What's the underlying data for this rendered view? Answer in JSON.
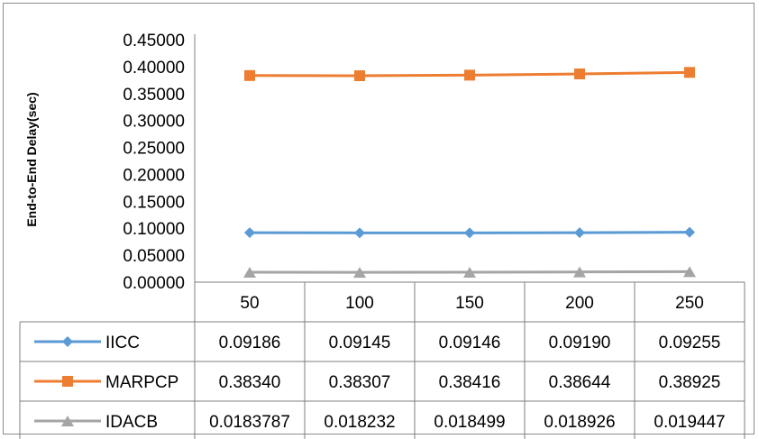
{
  "chart_data": {
    "type": "line",
    "ylabel": "End-to-End Delay(sec)",
    "xlabel": "",
    "ylim": [
      0,
      0.45
    ],
    "yticks": [
      "0.00000",
      "0.05000",
      "0.10000",
      "0.15000",
      "0.20000",
      "0.25000",
      "0.30000",
      "0.35000",
      "0.40000",
      "0.45000"
    ],
    "categories": [
      "50",
      "100",
      "150",
      "200",
      "250"
    ],
    "grid": false,
    "legend": "data-table",
    "series": [
      {
        "name": "IICC",
        "color": "#5b9bd5",
        "marker": "diamond",
        "values": [
          0.09186,
          0.09145,
          0.09146,
          0.0919,
          0.09255
        ],
        "labels": [
          "0.09186",
          "0.09145",
          "0.09146",
          "0.09190",
          "0.09255"
        ]
      },
      {
        "name": "MARPCP",
        "color": "#ed7d31",
        "marker": "square",
        "values": [
          0.3834,
          0.38307,
          0.38416,
          0.38644,
          0.38925
        ],
        "labels": [
          "0.38340",
          "0.38307",
          "0.38416",
          "0.38644",
          "0.38925"
        ]
      },
      {
        "name": "IDACB",
        "color": "#a5a5a5",
        "marker": "triangle",
        "values": [
          0.0183787,
          0.018232,
          0.018499,
          0.018926,
          0.019447
        ],
        "labels": [
          "0.0183787",
          "0.018232",
          "0.018499",
          "0.018926",
          "0.019447"
        ]
      }
    ]
  }
}
